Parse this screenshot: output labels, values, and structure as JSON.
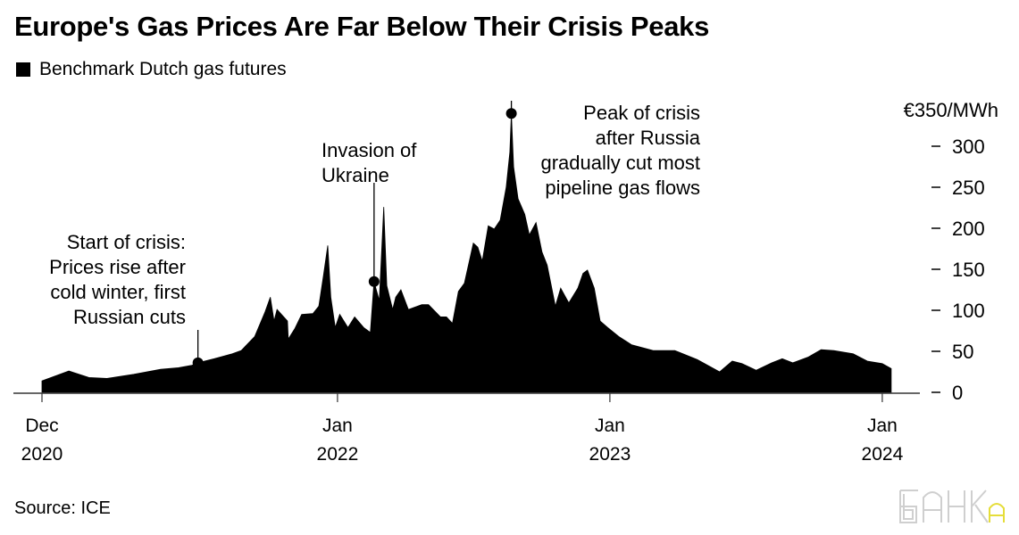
{
  "chart_data": {
    "type": "area",
    "title": "Europe's Gas Prices Are Far Below Their Crisis Peaks",
    "legend": {
      "position": "top-left",
      "entries": [
        "Benchmark Dutch gas futures"
      ]
    },
    "source": "Source: ICE",
    "y_unit_label": "€350/MWh",
    "ylim": [
      0,
      350
    ],
    "y_ticks": [
      "300",
      "250",
      "200",
      "150",
      "100",
      "50",
      "0"
    ],
    "y_tick_values": [
      300,
      250,
      200,
      150,
      100,
      50,
      0
    ],
    "x_range": [
      "2020-12-01",
      "2024-01-13"
    ],
    "x_ticks": [
      {
        "date": "2020-12-01",
        "line1": "Dec",
        "line2": "2020"
      },
      {
        "date": "2022-01-01",
        "line1": "Jan",
        "line2": "2022"
      },
      {
        "date": "2023-01-01",
        "line1": "Jan",
        "line2": "2023"
      },
      {
        "date": "2024-01-01",
        "line1": "Jan",
        "line2": "2024"
      }
    ],
    "grid": false,
    "color": "#000000",
    "series": [
      {
        "name": "Benchmark Dutch gas futures",
        "points": [
          [
            "2020-12-01",
            14
          ],
          [
            "2021-01-06",
            26
          ],
          [
            "2021-02-02",
            18
          ],
          [
            "2021-02-26",
            17
          ],
          [
            "2021-04-03",
            22
          ],
          [
            "2021-05-09",
            28
          ],
          [
            "2021-06-02",
            30
          ],
          [
            "2021-06-20",
            33
          ],
          [
            "2021-06-28",
            36
          ],
          [
            "2021-07-20",
            41
          ],
          [
            "2021-08-13",
            47
          ],
          [
            "2021-08-25",
            51
          ],
          [
            "2021-09-12",
            68
          ],
          [
            "2021-09-26",
            98
          ],
          [
            "2021-10-03",
            116
          ],
          [
            "2021-10-08",
            87
          ],
          [
            "2021-10-12",
            101
          ],
          [
            "2021-10-26",
            87
          ],
          [
            "2021-10-27",
            65
          ],
          [
            "2021-11-05",
            78
          ],
          [
            "2021-11-14",
            95
          ],
          [
            "2021-11-29",
            96
          ],
          [
            "2021-12-07",
            105
          ],
          [
            "2021-12-13",
            141
          ],
          [
            "2021-12-19",
            179
          ],
          [
            "2021-12-23",
            116
          ],
          [
            "2021-12-29",
            79
          ],
          [
            "2022-01-04",
            95
          ],
          [
            "2022-01-15",
            79
          ],
          [
            "2022-01-24",
            92
          ],
          [
            "2022-02-05",
            79
          ],
          [
            "2022-02-14",
            73
          ],
          [
            "2022-02-19",
            135
          ],
          [
            "2022-02-26",
            112
          ],
          [
            "2022-03-04",
            226
          ],
          [
            "2022-03-08",
            130
          ],
          [
            "2022-03-16",
            101
          ],
          [
            "2022-03-20",
            116
          ],
          [
            "2022-03-27",
            125
          ],
          [
            "2022-04-06",
            101
          ],
          [
            "2022-04-24",
            107
          ],
          [
            "2022-05-03",
            107
          ],
          [
            "2022-05-19",
            92
          ],
          [
            "2022-05-27",
            92
          ],
          [
            "2022-06-04",
            84
          ],
          [
            "2022-06-12",
            123
          ],
          [
            "2022-06-20",
            133
          ],
          [
            "2022-07-02",
            182
          ],
          [
            "2022-07-08",
            177
          ],
          [
            "2022-07-14",
            160
          ],
          [
            "2022-07-22",
            203
          ],
          [
            "2022-07-30",
            199
          ],
          [
            "2022-08-07",
            210
          ],
          [
            "2022-08-15",
            250
          ],
          [
            "2022-08-20",
            293
          ],
          [
            "2022-08-22",
            340
          ],
          [
            "2022-08-25",
            275
          ],
          [
            "2022-08-31",
            236
          ],
          [
            "2022-09-09",
            217
          ],
          [
            "2022-09-15",
            192
          ],
          [
            "2022-09-24",
            207
          ],
          [
            "2022-10-02",
            171
          ],
          [
            "2022-10-09",
            155
          ],
          [
            "2022-10-20",
            105
          ],
          [
            "2022-10-27",
            127
          ],
          [
            "2022-11-07",
            109
          ],
          [
            "2022-11-19",
            127
          ],
          [
            "2022-11-26",
            145
          ],
          [
            "2022-12-02",
            149
          ],
          [
            "2022-12-11",
            127
          ],
          [
            "2022-12-19",
            87
          ],
          [
            "2022-12-29",
            79
          ],
          [
            "2023-01-13",
            68
          ],
          [
            "2023-01-30",
            58
          ],
          [
            "2023-02-28",
            51
          ],
          [
            "2023-03-29",
            51
          ],
          [
            "2023-04-28",
            40
          ],
          [
            "2023-05-28",
            25
          ],
          [
            "2023-06-14",
            38
          ],
          [
            "2023-06-27",
            35
          ],
          [
            "2023-07-16",
            27
          ],
          [
            "2023-08-06",
            36
          ],
          [
            "2023-08-20",
            41
          ],
          [
            "2023-09-03",
            36
          ],
          [
            "2023-09-24",
            43
          ],
          [
            "2023-10-11",
            52
          ],
          [
            "2023-10-28",
            51
          ],
          [
            "2023-11-23",
            47
          ],
          [
            "2023-12-12",
            38
          ],
          [
            "2024-01-01",
            35
          ],
          [
            "2024-01-13",
            29
          ]
        ]
      }
    ],
    "annotations": [
      {
        "date": "2021-06-28",
        "value": 36,
        "lines": [
          "Start of crisis:",
          "Prices rise after",
          "cold winter, first",
          "Russian cuts"
        ]
      },
      {
        "date": "2022-02-19",
        "value": 135,
        "lines": [
          "Invasion of",
          "Ukraine"
        ]
      },
      {
        "date": "2022-08-22",
        "value": 340,
        "lines": [
          "Peak of crisis",
          "after Russia",
          "gradually cut most",
          "pipeline gas flows"
        ]
      }
    ]
  },
  "watermark": {
    "text": "БАНКА",
    "colors": {
      "main": "#c8c8c8",
      "accent": "#e8e04a"
    }
  }
}
